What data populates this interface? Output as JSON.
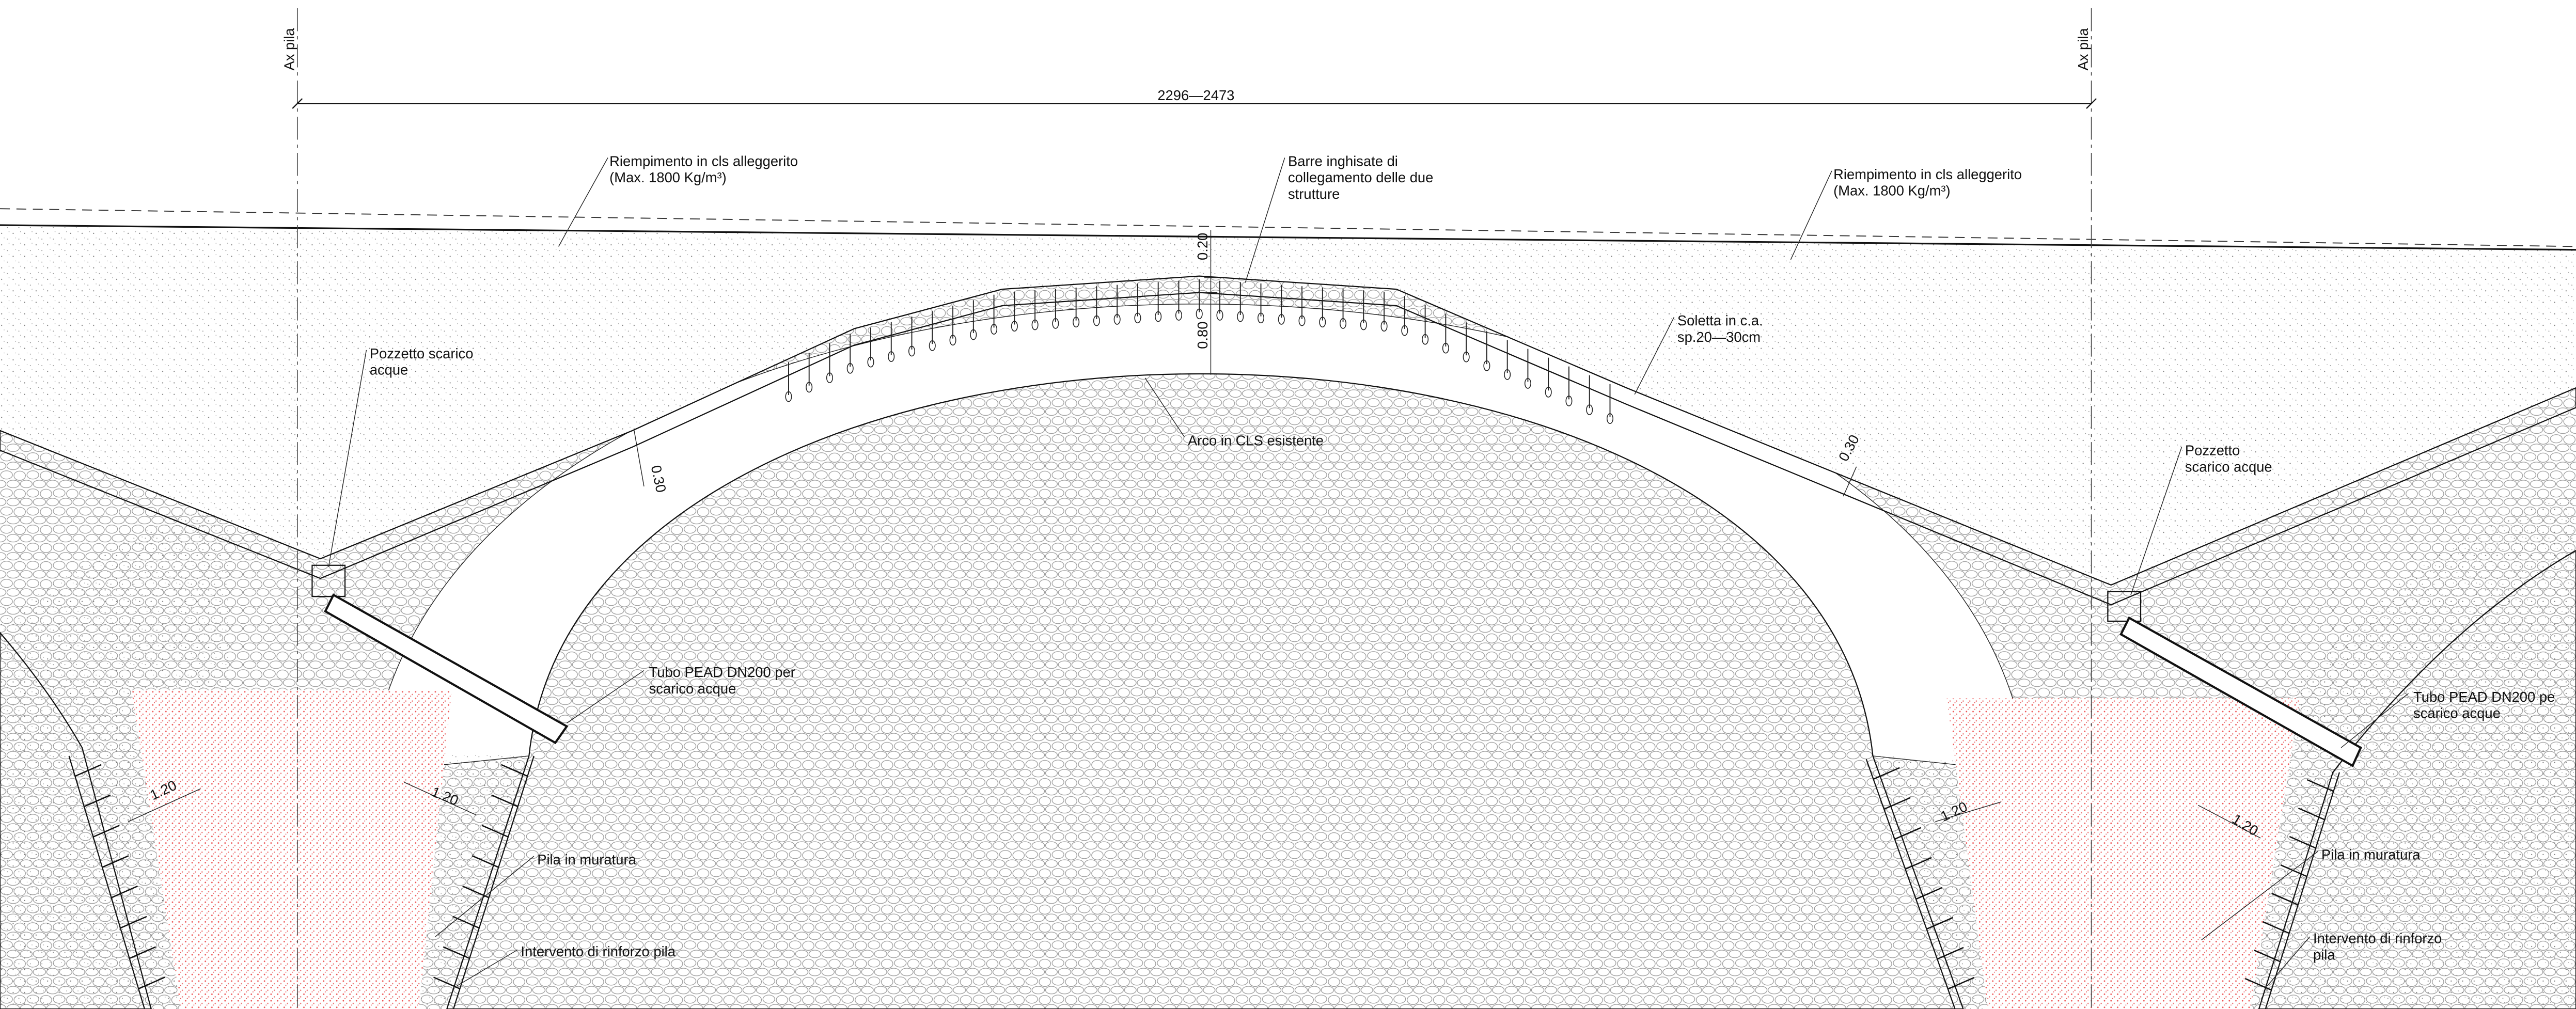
{
  "axes": {
    "left": "Ax pila",
    "right": "Ax pila"
  },
  "dimensions": {
    "span": "2296—2473",
    "slab_top": "0.20",
    "crown_depth": "0.80",
    "slab_left": "0.30",
    "slab_right": "0.30",
    "pier": [
      "1.20",
      "1.20",
      "1.20",
      "1.20"
    ]
  },
  "annotations": {
    "fill_left": [
      "Riempimento in cls alleggerito",
      "(Max. 1800 Kg/m³)"
    ],
    "bars": [
      "Barre inghisate di",
      "collegamento delle due",
      "strutture"
    ],
    "fill_right": [
      "Riempimento in cls alleggerito",
      "(Max. 1800 Kg/m³)"
    ],
    "drain_left": [
      "Pozzetto scarico",
      "acque"
    ],
    "slab": [
      "Soletta in c.a.",
      "sp.20—30cm"
    ],
    "arch": [
      "Arco in CLS esistente"
    ],
    "drain_right": [
      "Pozzetto",
      "scarico acque"
    ],
    "pipe_left": [
      "Tubo PEAD DN200 per",
      "scarico acque"
    ],
    "pipe_right": [
      "Tubo PEAD DN200 pe",
      "scarico acque"
    ],
    "pier_left": [
      "Pila in muratura"
    ],
    "pier_right": [
      "Pila in muratura"
    ],
    "reinforce_left": [
      "Intervento di rinforzo pila"
    ],
    "reinforce_right": [
      "Intervento di rinforzo",
      "pila"
    ]
  }
}
